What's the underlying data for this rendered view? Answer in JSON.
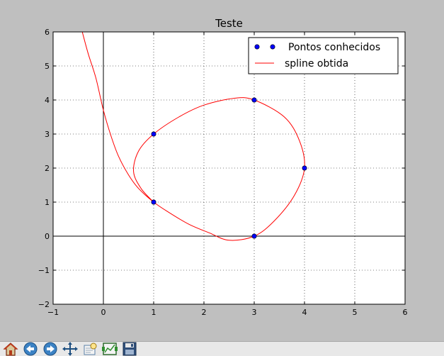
{
  "toolbar": {
    "buttons": [
      {
        "name": "home-button",
        "icon": "home-icon"
      },
      {
        "name": "back-button",
        "icon": "arrow-left-icon"
      },
      {
        "name": "forward-button",
        "icon": "arrow-right-icon"
      },
      {
        "name": "pan-button",
        "icon": "move-arrows-icon"
      },
      {
        "name": "zoom-button",
        "icon": "zoom-rect-icon"
      },
      {
        "name": "subplots-button",
        "icon": "subplots-config-icon"
      },
      {
        "name": "save-button",
        "icon": "floppy-disk-icon"
      }
    ]
  },
  "chart_data": {
    "type": "line",
    "title": "Teste",
    "xlabel": "",
    "ylabel": "",
    "xlim": [
      -1,
      6
    ],
    "ylim": [
      -2,
      6
    ],
    "xticks": [
      -1,
      0,
      1,
      2,
      3,
      4,
      5,
      6
    ],
    "yticks": [
      -2,
      -1,
      0,
      1,
      2,
      3,
      4,
      5,
      6
    ],
    "xtick_labels": [
      "−1",
      "0",
      "1",
      "2",
      "3",
      "4",
      "5",
      "6"
    ],
    "ytick_labels": [
      "−2",
      "−1",
      "0",
      "1",
      "2",
      "3",
      "4",
      "5",
      "6"
    ],
    "grid": true,
    "zero_axes_lines": true,
    "legend_position": "top-right",
    "series": [
      {
        "name": "Pontos conhecidos",
        "kind": "scatter",
        "color": "#0000ff",
        "points": [
          [
            1,
            1
          ],
          [
            1,
            3
          ],
          [
            3,
            4
          ],
          [
            4,
            2
          ],
          [
            3,
            0
          ]
        ]
      },
      {
        "name": "spline obtida",
        "kind": "line",
        "color": "#ff0000",
        "points": [
          [
            -0.42,
            6.0
          ],
          [
            -0.3,
            5.35
          ],
          [
            -0.15,
            4.65
          ],
          [
            0.0,
            3.7
          ],
          [
            0.15,
            2.95
          ],
          [
            0.3,
            2.35
          ],
          [
            0.5,
            1.8
          ],
          [
            0.7,
            1.4
          ],
          [
            1.0,
            1.0
          ],
          [
            1.3,
            0.7
          ],
          [
            1.7,
            0.35
          ],
          [
            2.1,
            0.1
          ],
          [
            2.5,
            -0.12
          ],
          [
            3.0,
            0.0
          ],
          [
            3.4,
            0.45
          ],
          [
            3.8,
            1.2
          ],
          [
            4.0,
            2.0
          ],
          [
            3.9,
            2.8
          ],
          [
            3.6,
            3.5
          ],
          [
            3.0,
            4.0
          ],
          [
            2.6,
            4.05
          ],
          [
            2.0,
            3.85
          ],
          [
            1.5,
            3.5
          ],
          [
            1.0,
            3.0
          ],
          [
            0.7,
            2.5
          ],
          [
            0.6,
            1.9
          ],
          [
            0.75,
            1.4
          ],
          [
            1.0,
            1.0
          ]
        ]
      }
    ]
  }
}
